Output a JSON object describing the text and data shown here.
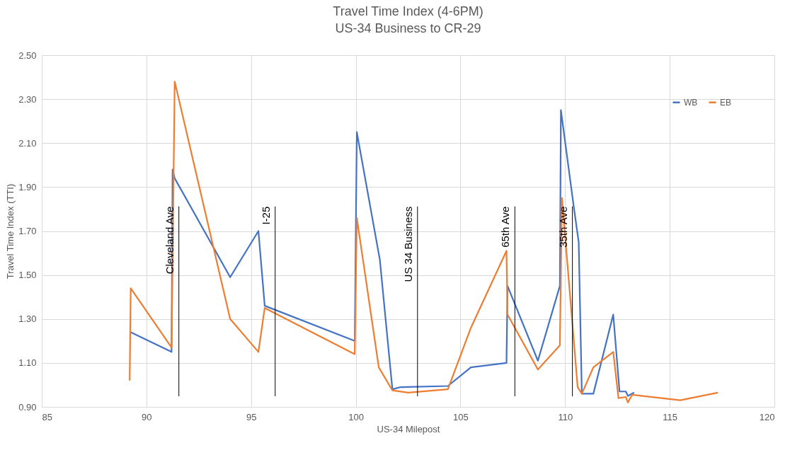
{
  "chart_data": {
    "type": "line",
    "title": "Travel Time Index (4-6PM)",
    "subtitle": "US-34 Business to CR-29",
    "xlabel": "US-34 Milepost",
    "ylabel": "Travel Time Index (TTI)",
    "xlim": [
      85,
      120
    ],
    "xticks": [
      85,
      90,
      95,
      100,
      105,
      110,
      115,
      120
    ],
    "ylim": [
      0.9,
      2.5
    ],
    "yticks": [
      {
        "value": 0.9,
        "label": "0.90"
      },
      {
        "value": 1.1,
        "label": "1.10"
      },
      {
        "value": 1.3,
        "label": "1.30"
      },
      {
        "value": 1.5,
        "label": "1.50"
      },
      {
        "value": 1.7,
        "label": "1.70"
      },
      {
        "value": 1.9,
        "label": "1.90"
      },
      {
        "value": 2.1,
        "label": "2.10"
      },
      {
        "value": 2.3,
        "label": "2.30"
      },
      {
        "value": 2.5,
        "label": "2.50"
      }
    ],
    "grid": true,
    "legend": "top right",
    "marker": "none",
    "line_style": "solid",
    "series": [
      {
        "name": "WB",
        "color": "#4472c4",
        "x": [
          89.25,
          91.2,
          91.25,
          91.35,
          94.0,
          95.35,
          95.65,
          99.95,
          100.05,
          101.15,
          101.75,
          102.15,
          104.4,
          105.5,
          107.2,
          107.25,
          108.7,
          109.75,
          109.8,
          110.4,
          110.65,
          110.8,
          111.35,
          112.3,
          112.6,
          112.9,
          113.0,
          113.3
        ],
        "values": [
          1.24,
          1.15,
          1.98,
          1.94,
          1.49,
          1.7,
          1.36,
          1.2,
          2.15,
          1.57,
          0.98,
          0.99,
          0.995,
          1.08,
          1.1,
          1.45,
          1.11,
          1.45,
          2.25,
          1.82,
          1.65,
          0.96,
          0.96,
          1.32,
          0.97,
          0.97,
          0.95,
          0.965
        ]
      },
      {
        "name": "EB",
        "color": "#ed7d31",
        "x": [
          89.2,
          89.25,
          91.2,
          91.35,
          94.0,
          95.35,
          95.65,
          99.95,
          100.05,
          101.1,
          101.75,
          102.5,
          104.4,
          105.5,
          107.2,
          107.25,
          108.7,
          109.75,
          109.85,
          110.6,
          110.8,
          111.35,
          112.3,
          112.55,
          112.9,
          113.0,
          113.2,
          115.5,
          117.3
        ],
        "values": [
          1.02,
          1.44,
          1.17,
          2.38,
          1.3,
          1.15,
          1.35,
          1.14,
          1.76,
          1.08,
          0.975,
          0.965,
          0.98,
          1.26,
          1.61,
          1.32,
          1.07,
          1.18,
          1.85,
          0.99,
          0.96,
          1.08,
          1.15,
          0.94,
          0.945,
          0.92,
          0.955,
          0.93,
          0.965
        ]
      }
    ],
    "ref_lines": [
      {
        "axis": "x",
        "value": 91.55,
        "label": "Cleveland  Ave",
        "color": "#000000"
      },
      {
        "axis": "x",
        "value": 96.15,
        "label": "I-25",
        "color": "#000000"
      },
      {
        "axis": "x",
        "value": 102.95,
        "label": "US 34 Business",
        "color": "#000000"
      },
      {
        "axis": "x",
        "value": 107.6,
        "label": "65th Ave",
        "color": "#000000"
      },
      {
        "axis": "x",
        "value": 110.35,
        "label": "35th Ave",
        "color": "#000000"
      }
    ]
  }
}
